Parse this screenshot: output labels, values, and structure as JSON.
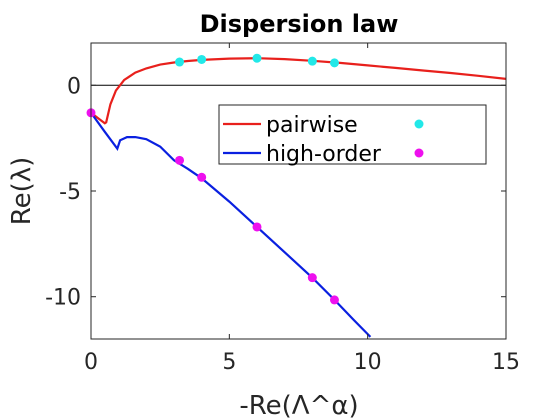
{
  "chart_data": {
    "type": "line",
    "title": "Dispersion law",
    "xlabel": "-Re(Λ^α)",
    "ylabel": "Re(λ)",
    "xlim": [
      0,
      15
    ],
    "ylim": [
      -12,
      2
    ],
    "xticks": [
      0,
      5,
      10,
      15
    ],
    "yticks": [
      0,
      -5,
      -10
    ],
    "grid": false,
    "legend_position": "top-right",
    "zero_line": 0,
    "series": [
      {
        "name": "pairwise",
        "color": "#e8201c",
        "kind": "line",
        "x": [
          0,
          0.3,
          0.5,
          0.55,
          0.7,
          0.9,
          1.2,
          1.6,
          2.0,
          2.5,
          3.0,
          3.5,
          4.0,
          5.0,
          6.0,
          7.0,
          8.0,
          9.0,
          10.0,
          11.0,
          12.0,
          13.0,
          14.0,
          15.0
        ],
        "y": [
          -1.3,
          -1.6,
          -1.8,
          -1.75,
          -0.9,
          -0.25,
          0.25,
          0.6,
          0.8,
          0.98,
          1.08,
          1.15,
          1.2,
          1.26,
          1.28,
          1.24,
          1.16,
          1.06,
          0.94,
          0.82,
          0.7,
          0.58,
          0.45,
          0.3
        ]
      },
      {
        "name": "high-order",
        "color": "#0a20e0",
        "kind": "line",
        "x": [
          0,
          0.5,
          0.95,
          1.05,
          1.3,
          1.6,
          2.0,
          2.5,
          3.0,
          3.5,
          4.0,
          5.0,
          6.0,
          7.0,
          8.0,
          8.8,
          9.5,
          10.1
        ],
        "y": [
          -1.3,
          -2.2,
          -3.0,
          -2.6,
          -2.45,
          -2.45,
          -2.55,
          -2.9,
          -3.55,
          -3.95,
          -4.4,
          -5.5,
          -6.7,
          -7.9,
          -9.1,
          -10.15,
          -11.1,
          -11.9
        ]
      },
      {
        "name": "",
        "legend_index": 0,
        "color": "#22e8e8",
        "kind": "scatter",
        "x": [
          3.2,
          4.0,
          6.0,
          8.0,
          8.8
        ],
        "y": [
          1.1,
          1.22,
          1.28,
          1.14,
          1.06
        ]
      },
      {
        "name": "",
        "legend_index": 1,
        "color": "#ee10ee",
        "kind": "scatter",
        "x": [
          0,
          3.2,
          4.0,
          6.0,
          8.0,
          8.8
        ],
        "y": [
          -1.3,
          -3.55,
          -4.35,
          -6.7,
          -9.1,
          -10.15
        ]
      }
    ]
  }
}
